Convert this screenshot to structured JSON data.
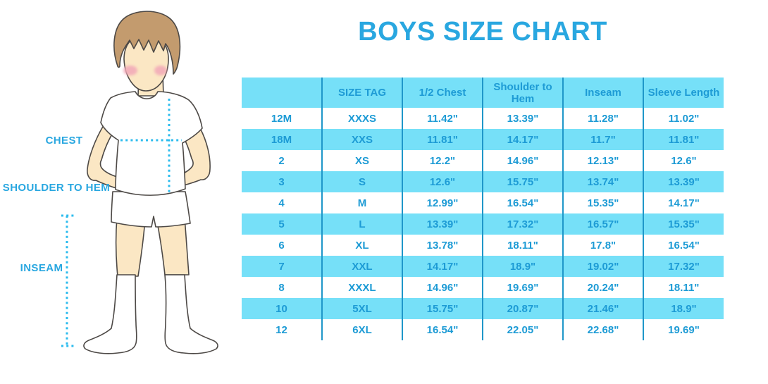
{
  "title": "BOYS SIZE CHART",
  "figure": {
    "description": "illustration of a boy in white t-shirt, shorts and knee socks with dotted measurement guides",
    "labels": {
      "chest": "CHEST",
      "shoulder_to_hem": "SHOULDER TO HEM",
      "inseam": "INSEAM"
    }
  },
  "chart_data": {
    "type": "table",
    "title": "BOYS SIZE CHART",
    "columns": [
      "",
      "SIZE TAG",
      "1/2 Chest",
      "Shoulder to Hem",
      "Inseam",
      "Sleeve Length"
    ],
    "rows": [
      [
        "12M",
        "XXXS",
        "11.42\"",
        "13.39\"",
        "11.28\"",
        "11.02\""
      ],
      [
        "18M",
        "XXS",
        "11.81\"",
        "14.17\"",
        "11.7\"",
        "11.81\""
      ],
      [
        "2",
        "XS",
        "12.2\"",
        "14.96\"",
        "12.13\"",
        "12.6\""
      ],
      [
        "3",
        "S",
        "12.6\"",
        "15.75\"",
        "13.74\"",
        "13.39\""
      ],
      [
        "4",
        "M",
        "12.99\"",
        "16.54\"",
        "15.35\"",
        "14.17\""
      ],
      [
        "5",
        "L",
        "13.39\"",
        "17.32\"",
        "16.57\"",
        "15.35\""
      ],
      [
        "6",
        "XL",
        "13.78\"",
        "18.11\"",
        "17.8\"",
        "16.54\""
      ],
      [
        "7",
        "XXL",
        "14.17\"",
        "18.9\"",
        "19.02\"",
        "17.32\""
      ],
      [
        "8",
        "XXXL",
        "14.96\"",
        "19.69\"",
        "20.24\"",
        "18.11\""
      ],
      [
        "10",
        "5XL",
        "15.75\"",
        "20.87\"",
        "21.46\"",
        "18.9\""
      ],
      [
        "12",
        "6XL",
        "16.54\"",
        "22.05\"",
        "22.68\"",
        "19.69\""
      ]
    ],
    "units": "inches",
    "layout_hints": "header row and every second data row light-cyan, others white; dark blue vertical column dividers only"
  },
  "colors": {
    "accent_blue": "#29A7E0",
    "table_text_blue": "#1D9BD5",
    "stripe_cyan": "#76E0F8",
    "divider_blue": "#1F97C9",
    "dotted_line_cyan": "#2CBCEE",
    "skin": "#FBE7C4",
    "hair_brown": "#C39B6E",
    "cheek_pink": "#F2A8B8"
  }
}
